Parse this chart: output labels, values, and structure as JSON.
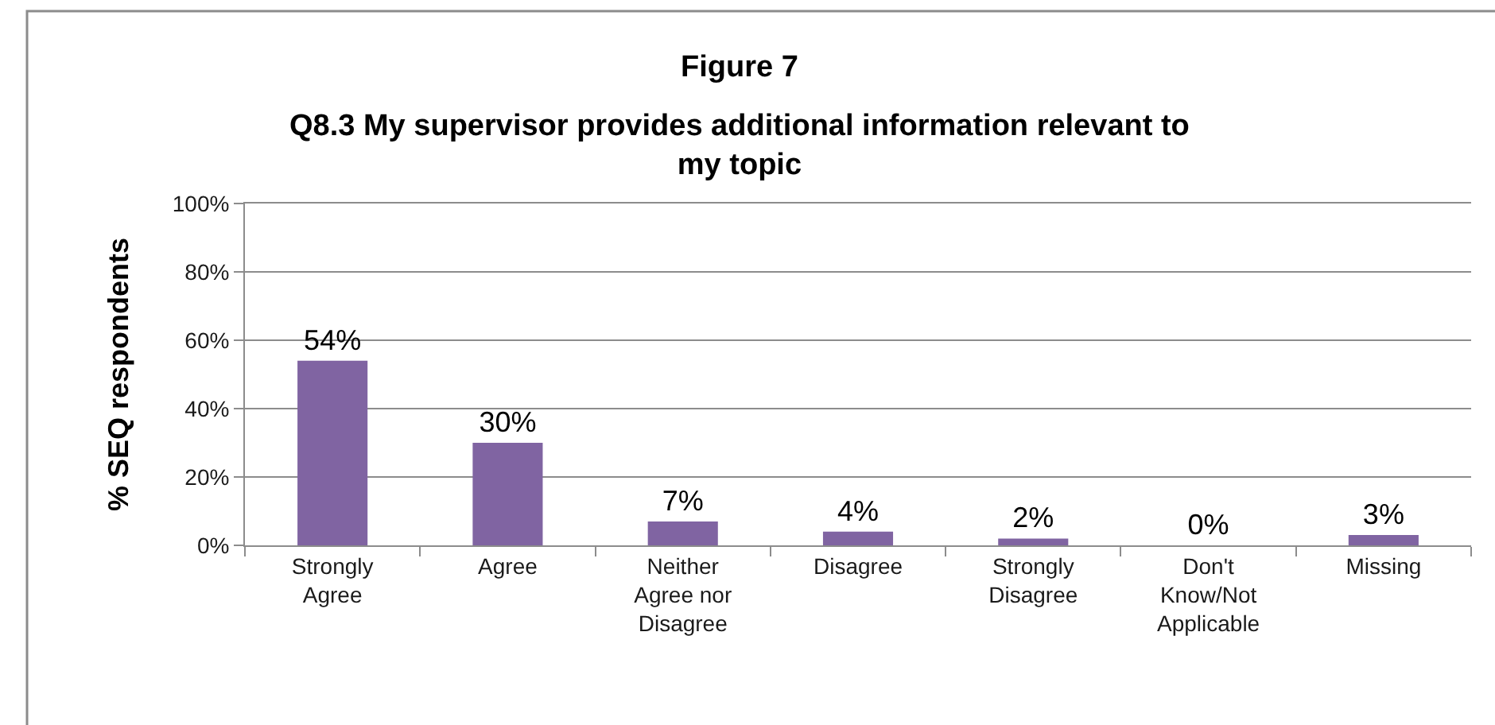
{
  "chart_data": {
    "type": "bar",
    "title": "Figure 7",
    "subtitle": "Q8.3 My supervisor provides additional information relevant to my topic",
    "ylabel": "% SEQ respondents",
    "categories": [
      "Strongly Agree",
      "Agree",
      "Neither Agree nor Disagree",
      "Disagree",
      "Strongly Disagree",
      "Don't Know/Not Applicable",
      "Missing"
    ],
    "values": [
      54,
      30,
      7,
      4,
      2,
      0,
      3
    ],
    "value_labels": [
      "54%",
      "30%",
      "7%",
      "4%",
      "2%",
      "0%",
      "3%"
    ],
    "color": "#8064a2",
    "ylim": [
      0,
      100
    ],
    "yticks": [
      {
        "value": 0,
        "label": "0%"
      },
      {
        "value": 20,
        "label": "20%"
      },
      {
        "value": 40,
        "label": "40%"
      },
      {
        "value": 60,
        "label": "60%"
      },
      {
        "value": 80,
        "label": "80%"
      },
      {
        "value": 100,
        "label": "100%"
      }
    ],
    "grid": "y"
  }
}
